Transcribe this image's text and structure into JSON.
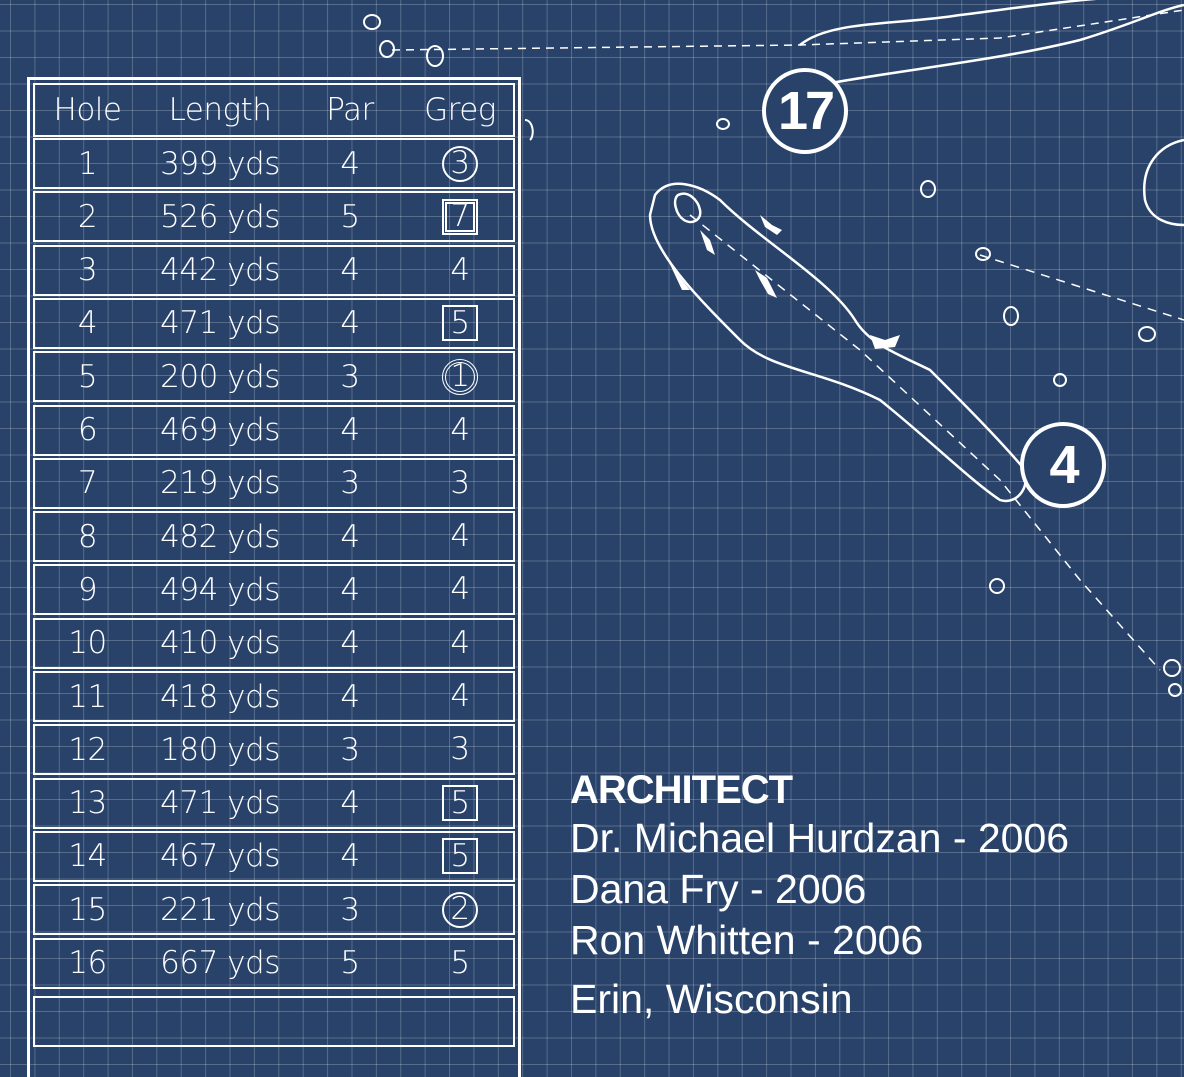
{
  "scorecard": {
    "headers": [
      "Hole",
      "Length",
      "Par",
      "Greg"
    ],
    "rows": [
      {
        "hole": "1",
        "length": "399 yds",
        "par": "4",
        "score": "3",
        "mark": "circle"
      },
      {
        "hole": "2",
        "length": "526 yds",
        "par": "5",
        "score": "7",
        "mark": "dsquare"
      },
      {
        "hole": "3",
        "length": "442 yds",
        "par": "4",
        "score": "4",
        "mark": "none"
      },
      {
        "hole": "4",
        "length": "471 yds",
        "par": "4",
        "score": "5",
        "mark": "square"
      },
      {
        "hole": "5",
        "length": "200 yds",
        "par": "3",
        "score": "1",
        "mark": "dcircle"
      },
      {
        "hole": "6",
        "length": "469 yds",
        "par": "4",
        "score": "4",
        "mark": "none"
      },
      {
        "hole": "7",
        "length": "219 yds",
        "par": "3",
        "score": "3",
        "mark": "none"
      },
      {
        "hole": "8",
        "length": "482 yds",
        "par": "4",
        "score": "4",
        "mark": "none"
      },
      {
        "hole": "9",
        "length": "494 yds",
        "par": "4",
        "score": "4",
        "mark": "none"
      },
      {
        "hole": "10",
        "length": "410 yds",
        "par": "4",
        "score": "4",
        "mark": "none"
      },
      {
        "hole": "11",
        "length": "418 yds",
        "par": "4",
        "score": "4",
        "mark": "none"
      },
      {
        "hole": "12",
        "length": "180 yds",
        "par": "3",
        "score": "3",
        "mark": "none"
      },
      {
        "hole": "13",
        "length": "471 yds",
        "par": "4",
        "score": "5",
        "mark": "square"
      },
      {
        "hole": "14",
        "length": "467 yds",
        "par": "4",
        "score": "5",
        "mark": "square"
      },
      {
        "hole": "15",
        "length": "221 yds",
        "par": "3",
        "score": "2",
        "mark": "circle"
      },
      {
        "hole": "16",
        "length": "667 yds",
        "par": "5",
        "score": "5",
        "mark": "none"
      }
    ]
  },
  "map": {
    "hole_badges": [
      "17",
      "4"
    ]
  },
  "architect": {
    "title": "ARCHITECT",
    "lines": [
      "Dr. Michael Hurdzan  -  2006",
      "Dana Fry  -  2006",
      "Ron Whitten  -  2006",
      "Erin, Wisconsin"
    ]
  },
  "colors": {
    "background": "#28426a",
    "lines": "#ffffff"
  }
}
